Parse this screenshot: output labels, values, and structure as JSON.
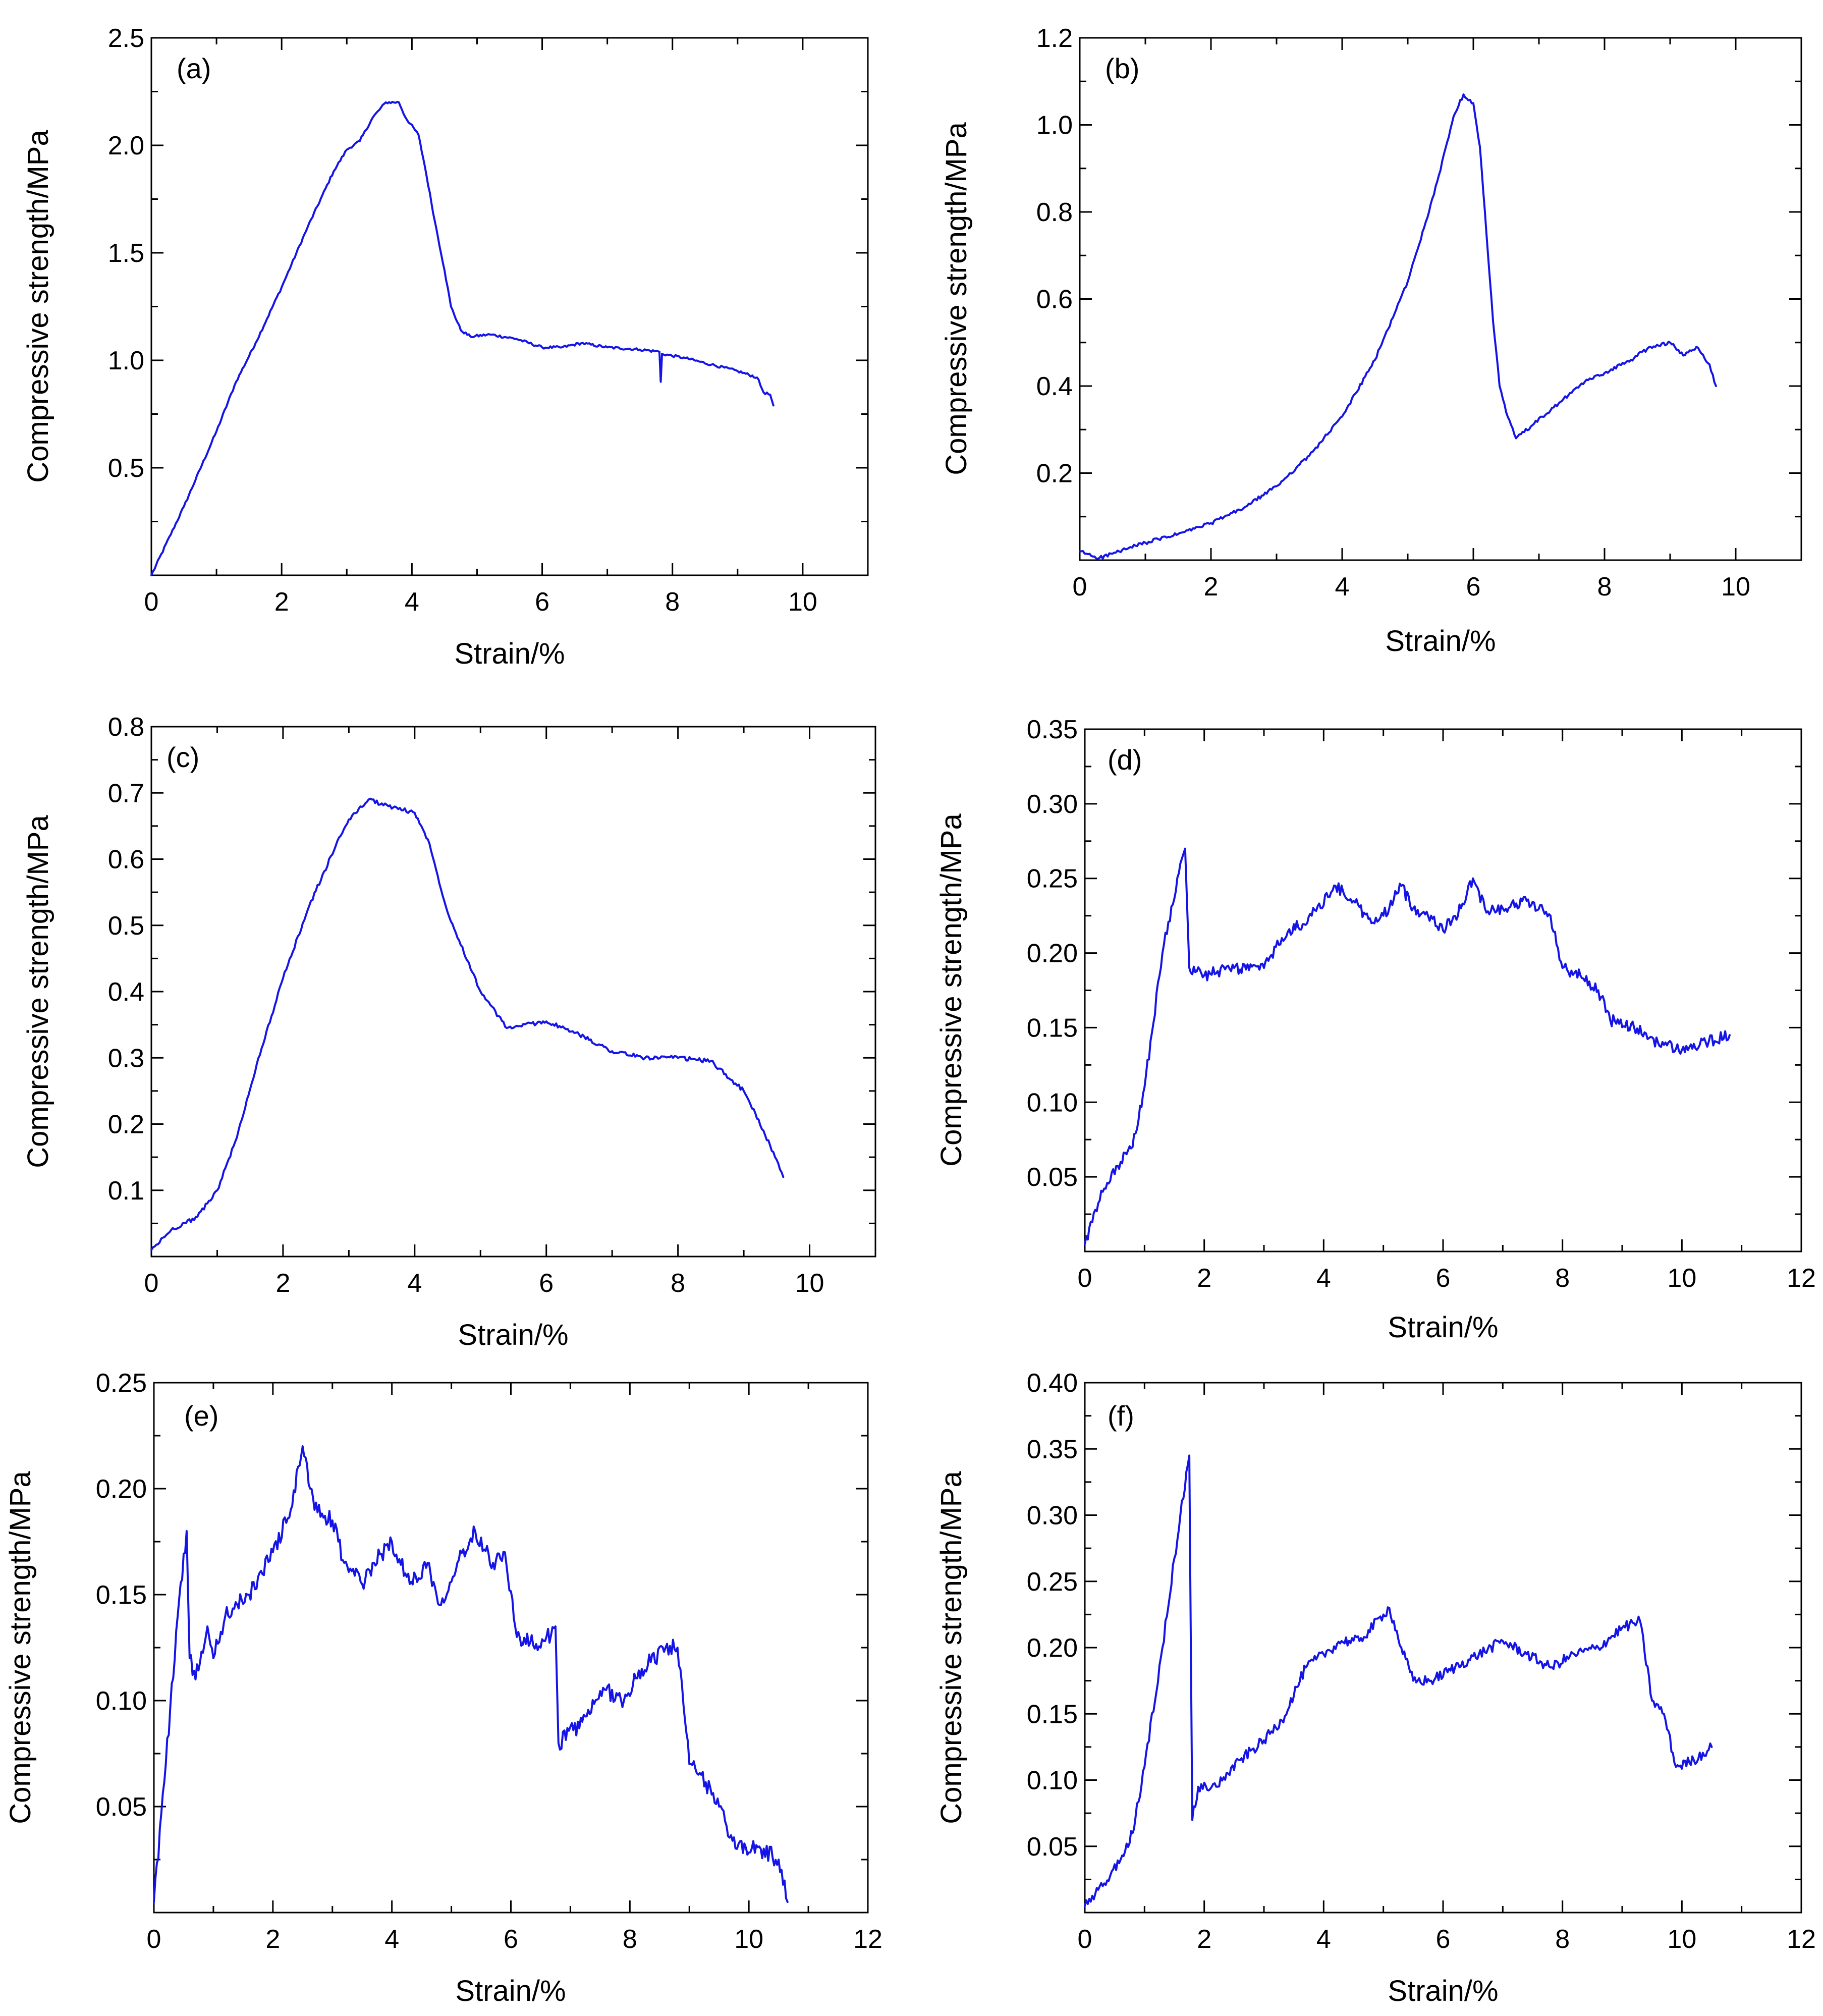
{
  "figure": {
    "series_color": "#1414e6"
  },
  "chart_data": [
    {
      "type": "line",
      "panel_label": "(a)",
      "xlabel": "Strain/%",
      "ylabel": "Compressive strength/MPa",
      "xlim": [
        0,
        11
      ],
      "ylim": [
        0,
        2.5
      ],
      "xticks": [
        "0",
        "2",
        "4",
        "6",
        "8",
        "10"
      ],
      "yticks": [
        "0.5",
        "1.0",
        "1.5",
        "2.0",
        "2.5"
      ],
      "series": [
        {
          "name": "(a)",
          "noise": 0.006,
          "points": [
            [
              0,
              0
            ],
            [
              0.5,
              0.32
            ],
            [
              1,
              0.67
            ],
            [
              1.3,
              0.9
            ],
            [
              1.6,
              1.08
            ],
            [
              2,
              1.34
            ],
            [
              2.4,
              1.62
            ],
            [
              2.8,
              1.88
            ],
            [
              3.0,
              1.98
            ],
            [
              3.2,
              2.02
            ],
            [
              3.4,
              2.13
            ],
            [
              3.6,
              2.2
            ],
            [
              3.8,
              2.2
            ],
            [
              3.9,
              2.13
            ],
            [
              4.1,
              2.05
            ],
            [
              4.2,
              1.9
            ],
            [
              4.35,
              1.65
            ],
            [
              4.5,
              1.42
            ],
            [
              4.6,
              1.25
            ],
            [
              4.75,
              1.14
            ],
            [
              4.9,
              1.11
            ],
            [
              5.2,
              1.12
            ],
            [
              5.6,
              1.1
            ],
            [
              6.0,
              1.06
            ],
            [
              6.3,
              1.06
            ],
            [
              6.6,
              1.08
            ],
            [
              7.0,
              1.06
            ],
            [
              7.5,
              1.05
            ],
            [
              7.8,
              1.04
            ],
            [
              7.82,
              0.9
            ],
            [
              7.84,
              1.03
            ],
            [
              8.2,
              1.01
            ],
            [
              8.6,
              0.98
            ],
            [
              9.0,
              0.95
            ],
            [
              9.3,
              0.92
            ],
            [
              9.4,
              0.85
            ],
            [
              9.5,
              0.84
            ],
            [
              9.55,
              0.79
            ]
          ]
        }
      ]
    },
    {
      "type": "line",
      "panel_label": "(b)",
      "xlabel": "Strain/%",
      "ylabel": "Compressive strength/MPa",
      "xlim": [
        0,
        11
      ],
      "ylim": [
        0,
        1.2
      ],
      "xticks": [
        "0",
        "2",
        "4",
        "6",
        "8",
        "10"
      ],
      "yticks": [
        "0.2",
        "0.4",
        "0.6",
        "0.8",
        "1.0",
        "1.2"
      ],
      "series": [
        {
          "name": "(b)",
          "noise": 0.004,
          "points": [
            [
              0,
              0.02
            ],
            [
              0.3,
              0.005
            ],
            [
              0.6,
              0.02
            ],
            [
              1,
              0.04
            ],
            [
              1.5,
              0.06
            ],
            [
              2,
              0.085
            ],
            [
              2.5,
              0.12
            ],
            [
              3,
              0.17
            ],
            [
              3.5,
              0.24
            ],
            [
              4,
              0.33
            ],
            [
              4.5,
              0.46
            ],
            [
              5,
              0.64
            ],
            [
              5.4,
              0.84
            ],
            [
              5.7,
              1.02
            ],
            [
              5.85,
              1.07
            ],
            [
              6.0,
              1.05
            ],
            [
              6.1,
              0.95
            ],
            [
              6.2,
              0.75
            ],
            [
              6.3,
              0.55
            ],
            [
              6.4,
              0.4
            ],
            [
              6.5,
              0.34
            ],
            [
              6.65,
              0.28
            ],
            [
              6.9,
              0.31
            ],
            [
              7.3,
              0.36
            ],
            [
              7.7,
              0.41
            ],
            [
              8.0,
              0.43
            ],
            [
              8.4,
              0.46
            ],
            [
              8.7,
              0.49
            ],
            [
              9.0,
              0.5
            ],
            [
              9.2,
              0.47
            ],
            [
              9.4,
              0.49
            ],
            [
              9.6,
              0.45
            ],
            [
              9.7,
              0.4
            ]
          ]
        }
      ]
    },
    {
      "type": "line",
      "panel_label": "(c)",
      "xlabel": "Strain/%",
      "ylabel": "Compressive strength/MPa",
      "xlim": [
        0,
        11
      ],
      "ylim": [
        0,
        0.8
      ],
      "xticks": [
        "0",
        "2",
        "4",
        "6",
        "8",
        "10"
      ],
      "yticks": [
        "0.1",
        "0.2",
        "0.3",
        "0.4",
        "0.5",
        "0.6",
        "0.7",
        "0.8"
      ],
      "series": [
        {
          "name": "(c)",
          "noise": 0.003,
          "points": [
            [
              0,
              0.01
            ],
            [
              0.3,
              0.04
            ],
            [
              0.7,
              0.06
            ],
            [
              1,
              0.1
            ],
            [
              1.3,
              0.18
            ],
            [
              1.6,
              0.29
            ],
            [
              2,
              0.42
            ],
            [
              2.4,
              0.53
            ],
            [
              2.8,
              0.62
            ],
            [
              3.0,
              0.66
            ],
            [
              3.3,
              0.69
            ],
            [
              3.6,
              0.68
            ],
            [
              4.0,
              0.67
            ],
            [
              4.2,
              0.63
            ],
            [
              4.5,
              0.52
            ],
            [
              5.0,
              0.4
            ],
            [
              5.4,
              0.345
            ],
            [
              6.0,
              0.355
            ],
            [
              6.5,
              0.335
            ],
            [
              7.0,
              0.31
            ],
            [
              7.5,
              0.3
            ],
            [
              8.0,
              0.3
            ],
            [
              8.5,
              0.295
            ],
            [
              9.0,
              0.25
            ],
            [
              9.3,
              0.19
            ],
            [
              9.6,
              0.12
            ]
          ]
        }
      ]
    },
    {
      "type": "line",
      "panel_label": "(d)",
      "xlabel": "Strain/%",
      "ylabel": "Compressive strength/MPa",
      "xlim": [
        0,
        12
      ],
      "ylim": [
        0,
        0.35
      ],
      "xticks": [
        "0",
        "2",
        "4",
        "6",
        "8",
        "10",
        "12"
      ],
      "yticks": [
        "0.05",
        "0.10",
        "0.15",
        "0.20",
        "0.25",
        "0.30",
        "0.35"
      ],
      "series": [
        {
          "name": "(d)",
          "noise": 0.004,
          "points": [
            [
              0,
              0.005
            ],
            [
              0.3,
              0.04
            ],
            [
              0.6,
              0.06
            ],
            [
              0.8,
              0.07
            ],
            [
              1.0,
              0.11
            ],
            [
              1.3,
              0.2
            ],
            [
              1.6,
              0.26
            ],
            [
              1.68,
              0.27
            ],
            [
              1.75,
              0.19
            ],
            [
              2.0,
              0.185
            ],
            [
              2.5,
              0.19
            ],
            [
              3.0,
              0.19
            ],
            [
              3.3,
              0.21
            ],
            [
              3.8,
              0.225
            ],
            [
              4.2,
              0.245
            ],
            [
              4.5,
              0.235
            ],
            [
              4.8,
              0.22
            ],
            [
              5.0,
              0.225
            ],
            [
              5.3,
              0.245
            ],
            [
              5.5,
              0.23
            ],
            [
              5.8,
              0.225
            ],
            [
              6.0,
              0.215
            ],
            [
              6.3,
              0.23
            ],
            [
              6.5,
              0.25
            ],
            [
              6.7,
              0.23
            ],
            [
              7.0,
              0.23
            ],
            [
              7.4,
              0.235
            ],
            [
              7.8,
              0.225
            ],
            [
              8.0,
              0.19
            ],
            [
              8.3,
              0.185
            ],
            [
              8.6,
              0.175
            ],
            [
              8.8,
              0.155
            ],
            [
              9.2,
              0.15
            ],
            [
              9.6,
              0.14
            ],
            [
              10.0,
              0.135
            ],
            [
              10.4,
              0.14
            ],
            [
              10.8,
              0.145
            ]
          ]
        }
      ]
    },
    {
      "type": "line",
      "panel_label": "(e)",
      "xlabel": "Strain/%",
      "ylabel": "Compressive strength/MPa",
      "xlim": [
        0,
        12
      ],
      "ylim": [
        0,
        0.25
      ],
      "xticks": [
        "0",
        "2",
        "4",
        "6",
        "8",
        "10",
        "12"
      ],
      "yticks": [
        "0.05",
        "0.10",
        "0.15",
        "0.20",
        "0.25"
      ],
      "series": [
        {
          "name": "(e)",
          "noise": 0.004,
          "points": [
            [
              0,
              0.005
            ],
            [
              0.2,
              0.07
            ],
            [
              0.4,
              0.14
            ],
            [
              0.55,
              0.18
            ],
            [
              0.6,
              0.12
            ],
            [
              0.7,
              0.11
            ],
            [
              0.9,
              0.135
            ],
            [
              1.0,
              0.12
            ],
            [
              1.2,
              0.14
            ],
            [
              1.6,
              0.15
            ],
            [
              2.0,
              0.17
            ],
            [
              2.3,
              0.19
            ],
            [
              2.5,
              0.22
            ],
            [
              2.7,
              0.19
            ],
            [
              3.0,
              0.185
            ],
            [
              3.2,
              0.165
            ],
            [
              3.5,
              0.155
            ],
            [
              3.7,
              0.165
            ],
            [
              4.0,
              0.175
            ],
            [
              4.3,
              0.155
            ],
            [
              4.6,
              0.165
            ],
            [
              4.8,
              0.145
            ],
            [
              5.1,
              0.165
            ],
            [
              5.4,
              0.18
            ],
            [
              5.7,
              0.165
            ],
            [
              5.9,
              0.17
            ],
            [
              6.1,
              0.13
            ],
            [
              6.5,
              0.125
            ],
            [
              6.75,
              0.135
            ],
            [
              6.8,
              0.08
            ],
            [
              7.2,
              0.09
            ],
            [
              7.6,
              0.105
            ],
            [
              7.9,
              0.1
            ],
            [
              8.2,
              0.115
            ],
            [
              8.6,
              0.125
            ],
            [
              8.8,
              0.125
            ],
            [
              9.0,
              0.07
            ],
            [
              9.2,
              0.065
            ],
            [
              9.5,
              0.05
            ],
            [
              9.8,
              0.03
            ],
            [
              10.2,
              0.03
            ],
            [
              10.5,
              0.025
            ],
            [
              10.65,
              0.005
            ]
          ]
        }
      ]
    },
    {
      "type": "line",
      "panel_label": "(f)",
      "xlabel": "Strain/%",
      "ylabel": "Compressive strength/MPa",
      "xlim": [
        0,
        12
      ],
      "ylim": [
        0,
        0.4
      ],
      "xticks": [
        "0",
        "2",
        "4",
        "6",
        "8",
        "10",
        "12"
      ],
      "yticks": [
        "0.05",
        "0.10",
        "0.15",
        "0.20",
        "0.25",
        "0.30",
        "0.35",
        "0.40"
      ],
      "series": [
        {
          "name": "(f)",
          "noise": 0.004,
          "points": [
            [
              0,
              0.005
            ],
            [
              0.3,
              0.02
            ],
            [
              0.6,
              0.04
            ],
            [
              0.8,
              0.06
            ],
            [
              1.0,
              0.11
            ],
            [
              1.3,
              0.2
            ],
            [
              1.6,
              0.3
            ],
            [
              1.75,
              0.345
            ],
            [
              1.8,
              0.07
            ],
            [
              1.9,
              0.095
            ],
            [
              2.2,
              0.095
            ],
            [
              2.6,
              0.115
            ],
            [
              3.0,
              0.13
            ],
            [
              3.3,
              0.145
            ],
            [
              3.7,
              0.185
            ],
            [
              4.0,
              0.195
            ],
            [
              4.3,
              0.205
            ],
            [
              4.6,
              0.205
            ],
            [
              5.0,
              0.225
            ],
            [
              5.1,
              0.23
            ],
            [
              5.3,
              0.2
            ],
            [
              5.5,
              0.175
            ],
            [
              5.8,
              0.175
            ],
            [
              6.2,
              0.185
            ],
            [
              6.6,
              0.195
            ],
            [
              7.0,
              0.205
            ],
            [
              7.4,
              0.195
            ],
            [
              7.8,
              0.185
            ],
            [
              8.2,
              0.195
            ],
            [
              8.6,
              0.2
            ],
            [
              9.0,
              0.215
            ],
            [
              9.3,
              0.22
            ],
            [
              9.5,
              0.16
            ],
            [
              9.7,
              0.15
            ],
            [
              9.9,
              0.11
            ],
            [
              10.2,
              0.115
            ],
            [
              10.5,
              0.125
            ]
          ]
        }
      ]
    }
  ]
}
